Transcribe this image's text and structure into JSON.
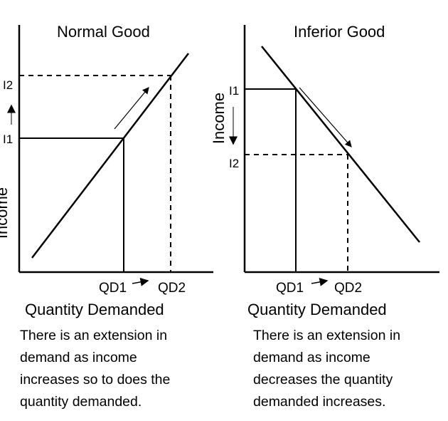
{
  "diagrams": [
    {
      "title": "Normal Good",
      "y_axis_label": "Income",
      "x_axis_label": "Quantity Demanded",
      "y_ticks": [
        "I2",
        "I1"
      ],
      "x_ticks": [
        "QD1",
        "QD2"
      ],
      "caption": [
        "There is an extension in",
        "demand as income",
        "increases so to does the",
        "quantity demanded."
      ]
    },
    {
      "title": "Inferior Good",
      "y_axis_label": "Income",
      "x_axis_label": "Quantity Demanded",
      "y_ticks": [
        "I1",
        "I2"
      ],
      "x_ticks": [
        "QD1",
        "QD2"
      ],
      "caption": [
        "There is an extension in",
        "demand as income",
        "decreases the quantity",
        "demanded increases."
      ]
    }
  ]
}
